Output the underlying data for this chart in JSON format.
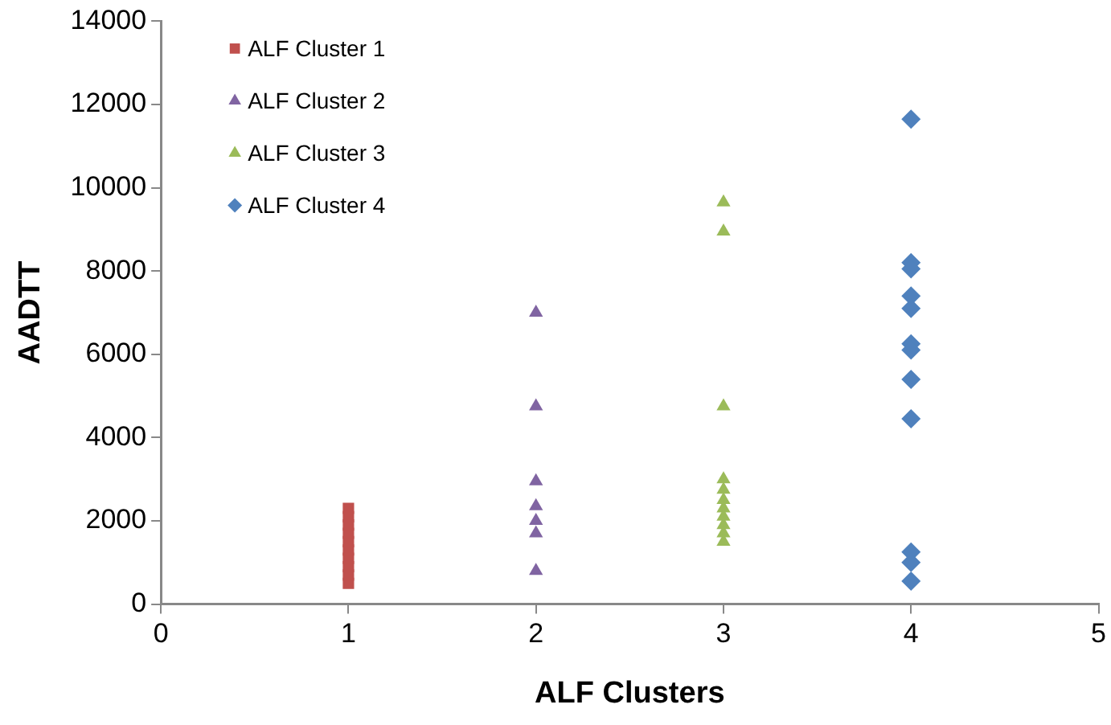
{
  "chart_data": {
    "type": "scatter",
    "xlabel": "ALF Clusters",
    "ylabel": "AADTT",
    "xlim": [
      0,
      5
    ],
    "xticks": [
      0,
      1,
      2,
      3,
      4,
      5
    ],
    "ylim": [
      0,
      14000
    ],
    "yticks": [
      0,
      2000,
      4000,
      6000,
      8000,
      10000,
      12000,
      14000
    ],
    "grid": false,
    "legend": "top left",
    "series": [
      {
        "name": "ALF Cluster 1",
        "color": "#c0504d",
        "marker": "square",
        "x": [
          1,
          1,
          1,
          1,
          1,
          1,
          1,
          1,
          1,
          1
        ],
        "values": [
          500,
          700,
          900,
          1100,
          1300,
          1500,
          1700,
          1900,
          2100,
          2300
        ]
      },
      {
        "name": "ALF Cluster 2",
        "color": "#8064a2",
        "marker": "triangle",
        "x": [
          2,
          2,
          2,
          2,
          2,
          2,
          2
        ],
        "values": [
          7000,
          4750,
          2950,
          2350,
          2000,
          1700,
          800
        ]
      },
      {
        "name": "ALF Cluster 3",
        "color": "#9bbb59",
        "marker": "triangle",
        "x": [
          3,
          3,
          3,
          3,
          3,
          3,
          3,
          3,
          3,
          3,
          3
        ],
        "values": [
          9650,
          8950,
          4750,
          3000,
          2750,
          2500,
          2300,
          2100,
          1900,
          1700,
          1500
        ]
      },
      {
        "name": "ALF Cluster 4",
        "color": "#4f81bd",
        "marker": "diamond",
        "x": [
          4,
          4,
          4,
          4,
          4,
          4,
          4,
          4,
          4,
          4,
          4,
          4
        ],
        "values": [
          11650,
          8200,
          8050,
          7400,
          7100,
          6250,
          6100,
          5400,
          4450,
          1250,
          1000,
          550
        ]
      }
    ]
  }
}
